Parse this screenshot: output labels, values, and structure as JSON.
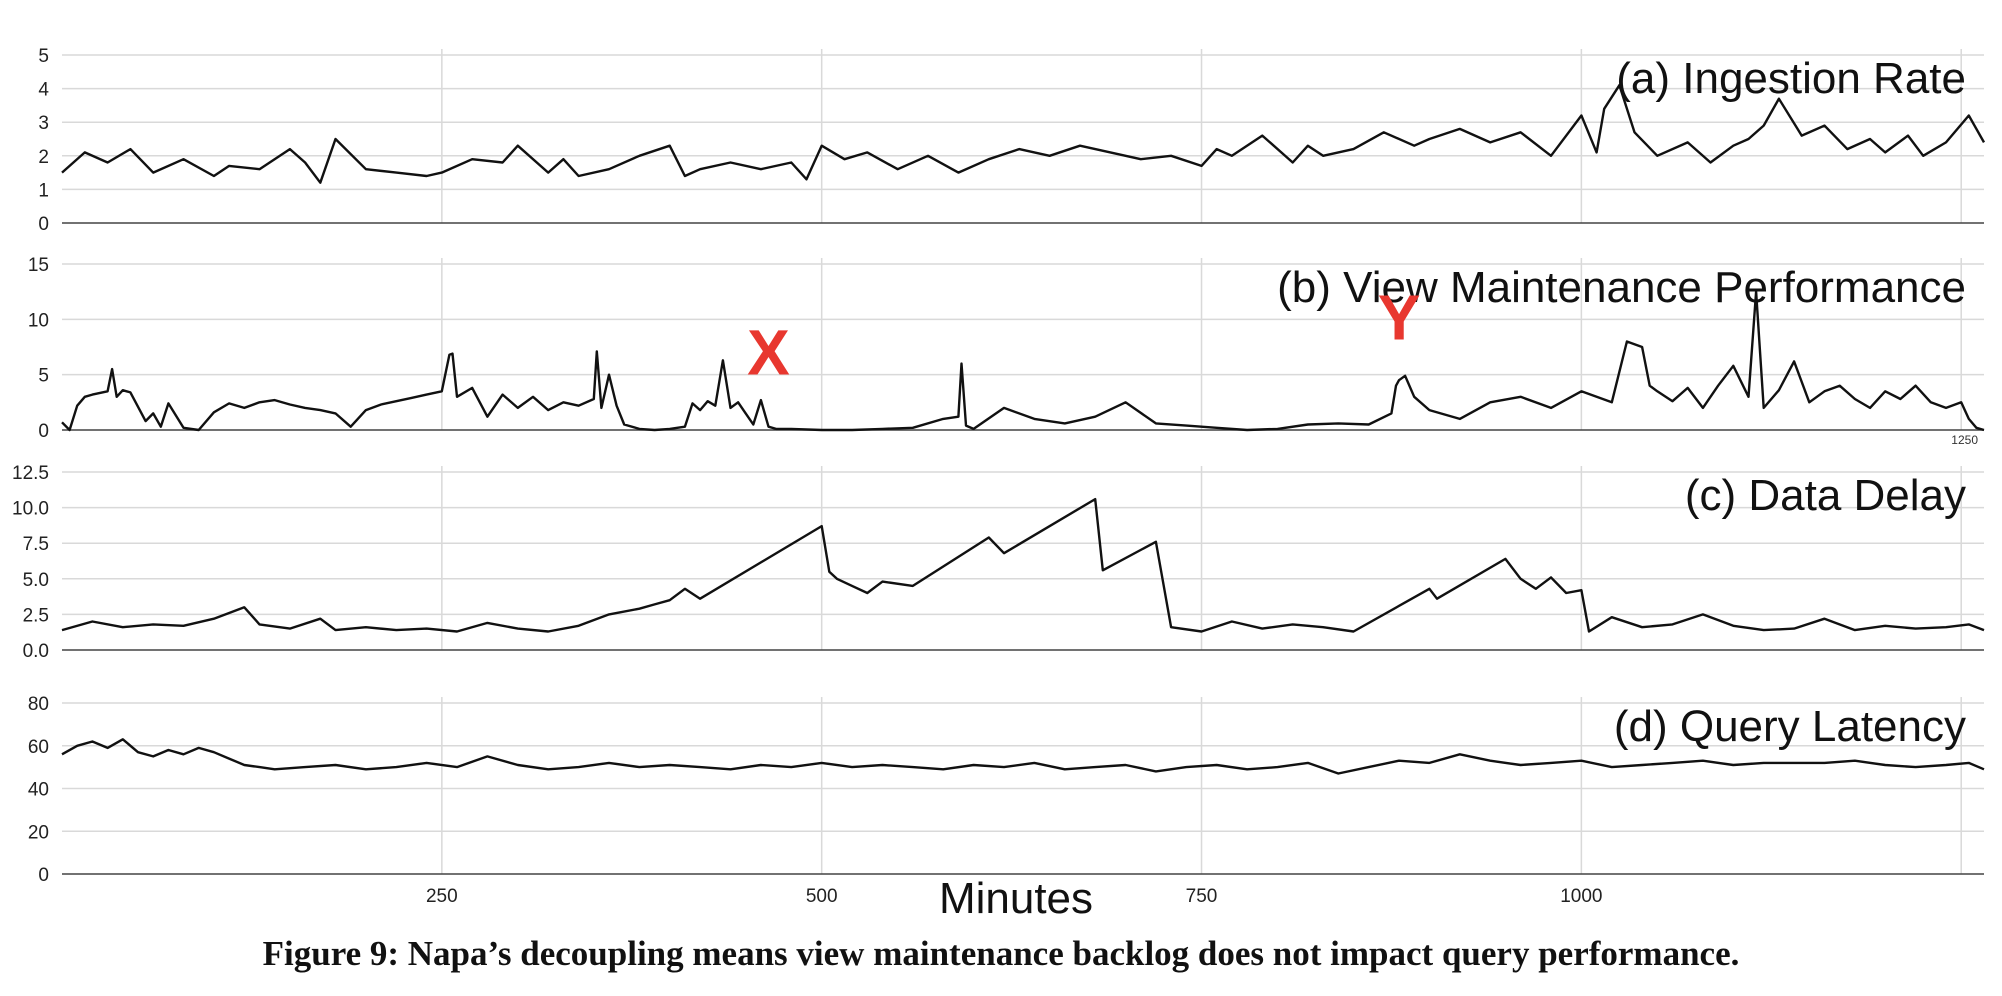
{
  "caption": "Figure 9: Napa’s decoupling means view maintenance backlog does not impact query performance.",
  "xlabel": "Minutes",
  "xticks": [
    "250",
    "500",
    "750",
    "1000"
  ],
  "corner_label": "1250",
  "markers": [
    {
      "text": "X",
      "x": 465,
      "y": 5
    },
    {
      "text": "Y",
      "x": 880,
      "y": 8.2
    }
  ],
  "chart_data": [
    {
      "type": "line",
      "title": "(a) Ingestion Rate",
      "xlim": [
        0,
        1265
      ],
      "ylim": [
        0,
        5
      ],
      "yticks": [
        "0",
        "1",
        "2",
        "3",
        "4",
        "5"
      ],
      "x": [
        0,
        15,
        30,
        45,
        60,
        80,
        100,
        110,
        130,
        150,
        160,
        170,
        180,
        200,
        220,
        240,
        250,
        270,
        290,
        300,
        320,
        330,
        340,
        360,
        380,
        400,
        410,
        420,
        440,
        460,
        480,
        490,
        500,
        515,
        530,
        550,
        570,
        590,
        610,
        630,
        650,
        670,
        690,
        710,
        730,
        750,
        760,
        770,
        790,
        810,
        820,
        830,
        850,
        870,
        890,
        900,
        920,
        940,
        960,
        980,
        1000,
        1010,
        1015,
        1025,
        1035,
        1050,
        1070,
        1085,
        1100,
        1110,
        1120,
        1130,
        1145,
        1160,
        1175,
        1190,
        1200,
        1215,
        1225,
        1240,
        1255,
        1265
      ],
      "y": [
        1.5,
        2.1,
        1.8,
        2.2,
        1.5,
        1.9,
        1.4,
        1.7,
        1.6,
        2.2,
        1.8,
        1.2,
        2.5,
        1.6,
        1.5,
        1.4,
        1.5,
        1.9,
        1.8,
        2.3,
        1.5,
        1.9,
        1.4,
        1.6,
        2.0,
        2.3,
        1.4,
        1.6,
        1.8,
        1.6,
        1.8,
        1.3,
        2.3,
        1.9,
        2.1,
        1.6,
        2.0,
        1.5,
        1.9,
        2.2,
        2.0,
        2.3,
        2.1,
        1.9,
        2.0,
        1.7,
        2.2,
        2.0,
        2.6,
        1.8,
        2.3,
        2.0,
        2.2,
        2.7,
        2.3,
        2.5,
        2.8,
        2.4,
        2.7,
        2.0,
        3.2,
        2.1,
        3.4,
        4.1,
        2.7,
        2.0,
        2.4,
        1.8,
        2.3,
        2.5,
        2.9,
        3.7,
        2.6,
        2.9,
        2.2,
        2.5,
        2.1,
        2.6,
        2.0,
        2.4,
        3.2,
        2.4
      ]
    },
    {
      "type": "line",
      "title": "(b) View Maintenance Performance",
      "xlim": [
        0,
        1265
      ],
      "ylim": [
        0,
        15
      ],
      "yticks": [
        "0",
        "5",
        "10",
        "15"
      ],
      "x": [
        0,
        5,
        10,
        15,
        20,
        30,
        33,
        36,
        40,
        45,
        55,
        60,
        65,
        70,
        80,
        90,
        100,
        110,
        120,
        130,
        140,
        150,
        160,
        170,
        180,
        190,
        200,
        210,
        220,
        230,
        240,
        250,
        255,
        257,
        260,
        270,
        280,
        290,
        300,
        310,
        320,
        330,
        340,
        350,
        352,
        355,
        360,
        365,
        370,
        380,
        390,
        400,
        410,
        415,
        420,
        425,
        430,
        435,
        440,
        445,
        450,
        455,
        460,
        465,
        470,
        480,
        500,
        520,
        540,
        560,
        580,
        590,
        592,
        595,
        600,
        620,
        640,
        660,
        680,
        700,
        720,
        740,
        760,
        780,
        800,
        820,
        840,
        860,
        875,
        878,
        880,
        884,
        890,
        900,
        920,
        940,
        960,
        980,
        1000,
        1020,
        1030,
        1040,
        1045,
        1050,
        1060,
        1070,
        1080,
        1090,
        1100,
        1110,
        1115,
        1120,
        1130,
        1140,
        1150,
        1160,
        1170,
        1180,
        1190,
        1200,
        1210,
        1220,
        1230,
        1240,
        1250,
        1255,
        1260,
        1265
      ],
      "y": [
        0.7,
        0,
        2.2,
        3,
        3.2,
        3.5,
        5.5,
        3,
        3.6,
        3.4,
        0.8,
        1.5,
        0.3,
        2.4,
        0.2,
        0,
        1.6,
        2.4,
        2.0,
        2.5,
        2.7,
        2.3,
        2.0,
        1.8,
        1.5,
        0.3,
        1.8,
        2.3,
        2.6,
        2.9,
        3.2,
        3.5,
        6.8,
        6.9,
        3.0,
        3.8,
        1.2,
        3.2,
        2.0,
        3.0,
        1.8,
        2.5,
        2.2,
        2.8,
        7.1,
        2.0,
        5.0,
        2.2,
        0.5,
        0.1,
        0,
        0.1,
        0.3,
        2.4,
        1.8,
        2.6,
        2.2,
        6.3,
        2.0,
        2.5,
        1.5,
        0.5,
        2.7,
        0.3,
        0.1,
        0.1,
        0,
        0,
        0.1,
        0.2,
        1.0,
        1.2,
        6.0,
        0.4,
        0.1,
        2.0,
        1.0,
        0.6,
        1.2,
        2.5,
        0.6,
        0.4,
        0.2,
        0,
        0.1,
        0.5,
        0.6,
        0.5,
        1.5,
        4.0,
        4.5,
        4.9,
        3.0,
        1.8,
        1.0,
        2.5,
        3.0,
        2.0,
        3.5,
        2.5,
        8.0,
        7.5,
        4.0,
        3.5,
        2.6,
        3.8,
        2.0,
        4.0,
        5.8,
        3.0,
        12.5,
        2.0,
        3.6,
        6.2,
        2.5,
        3.5,
        4.0,
        2.8,
        2.0,
        3.5,
        2.8,
        4.0,
        2.5,
        2.0,
        2.5,
        1.0,
        0.2,
        0
      ]
    },
    {
      "type": "line",
      "title": "(c) Data Delay",
      "xlim": [
        0,
        1265
      ],
      "ylim": [
        0,
        12.5
      ],
      "yticks": [
        "0.0",
        "2.5",
        "5.0",
        "7.5",
        "10.0",
        "12.5"
      ],
      "x": [
        0,
        20,
        40,
        60,
        80,
        100,
        120,
        130,
        150,
        170,
        180,
        200,
        220,
        240,
        260,
        280,
        300,
        320,
        340,
        360,
        380,
        390,
        400,
        410,
        420,
        500,
        505,
        510,
        520,
        530,
        540,
        560,
        610,
        620,
        680,
        685,
        720,
        730,
        750,
        770,
        790,
        810,
        830,
        850,
        900,
        905,
        950,
        960,
        970,
        980,
        990,
        1000,
        1005,
        1020,
        1040,
        1060,
        1080,
        1100,
        1120,
        1140,
        1160,
        1180,
        1200,
        1220,
        1240,
        1255,
        1265
      ],
      "y": [
        1.4,
        2.0,
        1.6,
        1.8,
        1.7,
        2.2,
        3.0,
        1.8,
        1.5,
        2.2,
        1.4,
        1.6,
        1.4,
        1.5,
        1.3,
        1.9,
        1.5,
        1.3,
        1.7,
        2.5,
        2.9,
        3.2,
        3.5,
        4.3,
        3.6,
        8.7,
        5.5,
        5.0,
        4.5,
        4.0,
        4.8,
        4.5,
        7.9,
        6.8,
        10.6,
        5.6,
        7.6,
        1.6,
        1.3,
        2.0,
        1.5,
        1.8,
        1.6,
        1.3,
        4.3,
        3.6,
        6.4,
        5.0,
        4.3,
        5.1,
        4.0,
        4.2,
        1.3,
        2.3,
        1.6,
        1.8,
        2.5,
        1.7,
        1.4,
        1.5,
        2.2,
        1.4,
        1.7,
        1.5,
        1.6,
        1.8,
        1.4
      ]
    },
    {
      "type": "line",
      "title": "(d) Query Latency",
      "xlim": [
        0,
        1265
      ],
      "ylim": [
        0,
        80
      ],
      "yticks": [
        "0",
        "20",
        "40",
        "60",
        "80"
      ],
      "x": [
        0,
        10,
        20,
        30,
        40,
        50,
        60,
        70,
        80,
        90,
        100,
        110,
        120,
        130,
        140,
        160,
        180,
        200,
        220,
        240,
        260,
        280,
        300,
        320,
        340,
        360,
        380,
        400,
        420,
        440,
        460,
        480,
        500,
        520,
        540,
        560,
        580,
        600,
        620,
        640,
        660,
        680,
        700,
        720,
        740,
        760,
        780,
        800,
        820,
        840,
        860,
        880,
        900,
        920,
        940,
        960,
        980,
        1000,
        1020,
        1040,
        1060,
        1080,
        1100,
        1120,
        1140,
        1160,
        1180,
        1200,
        1220,
        1240,
        1255,
        1265
      ],
      "y": [
        56,
        60,
        62,
        59,
        63,
        57,
        55,
        58,
        56,
        59,
        57,
        54,
        51,
        50,
        49,
        50,
        51,
        49,
        50,
        52,
        50,
        55,
        51,
        49,
        50,
        52,
        50,
        51,
        50,
        49,
        51,
        50,
        52,
        50,
        51,
        50,
        49,
        51,
        50,
        52,
        49,
        50,
        51,
        48,
        50,
        51,
        49,
        50,
        52,
        47,
        50,
        53,
        52,
        56,
        53,
        51,
        52,
        53,
        50,
        51,
        52,
        53,
        51,
        52,
        52,
        52,
        53,
        51,
        50,
        51,
        52,
        49
      ]
    }
  ]
}
